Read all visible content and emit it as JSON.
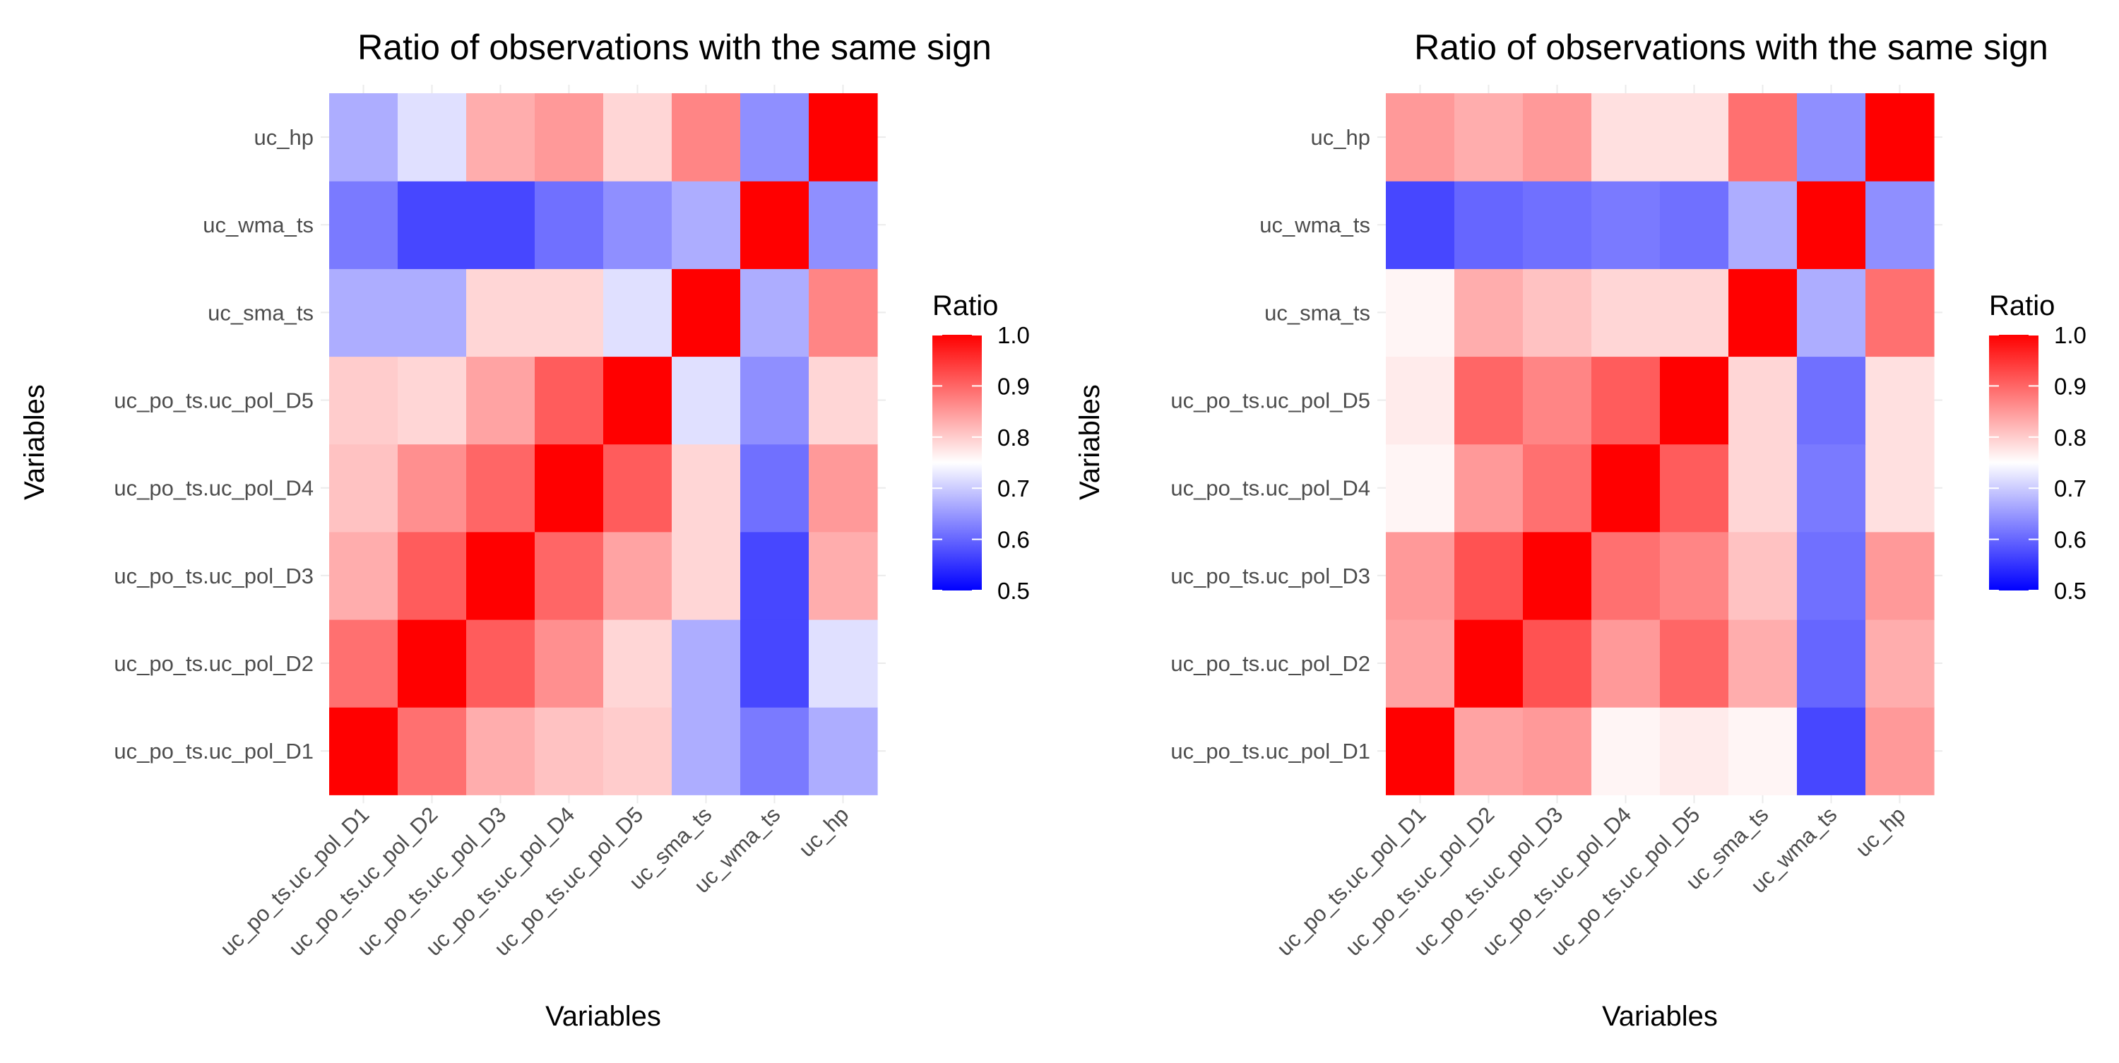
{
  "chart_data": [
    {
      "type": "heatmap",
      "title": "Ratio of observations with the same sign",
      "xlabel": "Variables",
      "ylabel": "Variables",
      "x_categories": [
        "uc_po_ts.uc_pol_D1",
        "uc_po_ts.uc_pol_D2",
        "uc_po_ts.uc_pol_D3",
        "uc_po_ts.uc_pol_D4",
        "uc_po_ts.uc_pol_D5",
        "uc_sma_ts",
        "uc_wma_ts",
        "uc_hp"
      ],
      "y_categories": [
        "uc_po_ts.uc_pol_D1",
        "uc_po_ts.uc_pol_D2",
        "uc_po_ts.uc_pol_D3",
        "uc_po_ts.uc_pol_D4",
        "uc_po_ts.uc_pol_D5",
        "uc_sma_ts",
        "uc_wma_ts",
        "uc_hp"
      ],
      "values": [
        [
          1.0,
          0.89,
          0.83,
          0.81,
          0.8,
          0.67,
          0.62,
          0.67
        ],
        [
          0.89,
          1.0,
          0.91,
          0.86,
          0.79,
          0.67,
          0.57,
          0.72
        ],
        [
          0.83,
          0.91,
          1.0,
          0.9,
          0.84,
          0.79,
          0.57,
          0.83
        ],
        [
          0.81,
          0.86,
          0.9,
          1.0,
          0.91,
          0.79,
          0.61,
          0.85
        ],
        [
          0.8,
          0.79,
          0.84,
          0.91,
          1.0,
          0.72,
          0.64,
          0.79
        ],
        [
          0.67,
          0.67,
          0.79,
          0.79,
          0.72,
          1.0,
          0.67,
          0.87
        ],
        [
          0.62,
          0.57,
          0.57,
          0.61,
          0.64,
          0.67,
          1.0,
          0.64
        ],
        [
          0.67,
          0.72,
          0.83,
          0.85,
          0.79,
          0.87,
          0.64,
          1.0
        ]
      ],
      "legend": {
        "title": "Ratio",
        "range": [
          0.5,
          1.0
        ],
        "midpoint": 0.75,
        "ticks": [
          "0.5",
          "0.6",
          "0.7",
          "0.8",
          "0.9",
          "1.0"
        ],
        "low_color": "#0000ff",
        "mid_color": "#ffffff",
        "high_color": "#ff0000",
        "placement": "right"
      }
    },
    {
      "type": "heatmap",
      "title": "Ratio of observations with the same sign",
      "xlabel": "Variables",
      "ylabel": "Variables",
      "x_categories": [
        "uc_po_ts.uc_pol_D1",
        "uc_po_ts.uc_pol_D2",
        "uc_po_ts.uc_pol_D3",
        "uc_po_ts.uc_pol_D4",
        "uc_po_ts.uc_pol_D5",
        "uc_sma_ts",
        "uc_wma_ts",
        "uc_hp"
      ],
      "y_categories": [
        "uc_po_ts.uc_pol_D1",
        "uc_po_ts.uc_pol_D2",
        "uc_po_ts.uc_pol_D3",
        "uc_po_ts.uc_pol_D4",
        "uc_po_ts.uc_pol_D5",
        "uc_sma_ts",
        "uc_wma_ts",
        "uc_hp"
      ],
      "values": [
        [
          1.0,
          0.84,
          0.85,
          0.76,
          0.77,
          0.76,
          0.57,
          0.85
        ],
        [
          0.84,
          1.0,
          0.92,
          0.85,
          0.9,
          0.83,
          0.6,
          0.83
        ],
        [
          0.85,
          0.92,
          1.0,
          0.89,
          0.87,
          0.81,
          0.61,
          0.85
        ],
        [
          0.76,
          0.85,
          0.89,
          1.0,
          0.91,
          0.79,
          0.62,
          0.78
        ],
        [
          0.77,
          0.9,
          0.87,
          0.91,
          1.0,
          0.79,
          0.61,
          0.78
        ],
        [
          0.76,
          0.83,
          0.81,
          0.79,
          0.79,
          1.0,
          0.67,
          0.89
        ],
        [
          0.57,
          0.6,
          0.61,
          0.62,
          0.61,
          0.67,
          1.0,
          0.64
        ],
        [
          0.85,
          0.83,
          0.85,
          0.78,
          0.78,
          0.89,
          0.64,
          1.0
        ]
      ],
      "legend": {
        "title": "Ratio",
        "range": [
          0.5,
          1.0
        ],
        "midpoint": 0.75,
        "ticks": [
          "0.5",
          "0.6",
          "0.7",
          "0.8",
          "0.9",
          "1.0"
        ],
        "low_color": "#0000ff",
        "mid_color": "#ffffff",
        "high_color": "#ff0000",
        "placement": "right"
      }
    }
  ]
}
